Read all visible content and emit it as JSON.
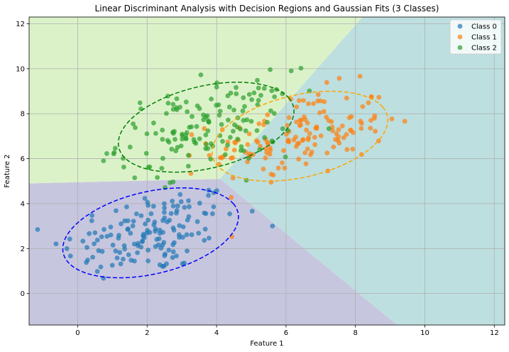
{
  "chart_data": {
    "type": "scatter",
    "title": "Linear Discriminant Analysis with Decision Regions and Gaussian Fits (3 Classes)",
    "xlabel": "Feature 1",
    "ylabel": "Feature 2",
    "xlim": [
      -1.4,
      12.3
    ],
    "ylim": [
      -1.4,
      12.3
    ],
    "xticks": [
      0,
      2,
      4,
      6,
      8,
      10,
      12
    ],
    "yticks": [
      0,
      2,
      4,
      6,
      8,
      10,
      12
    ],
    "grid": true,
    "legend": "top-right",
    "regions": {
      "boundary_0_2": [
        [
          -1.4,
          4.9
        ],
        [
          4.1,
          5.1
        ]
      ],
      "boundary_0_1": [
        [
          4.1,
          5.1
        ],
        [
          9.2,
          -1.4
        ]
      ],
      "boundary_1_2": [
        [
          4.1,
          5.1
        ],
        [
          8.2,
          12.3
        ]
      ],
      "colors": {
        "0": "#c7c6df",
        "1": "#bddfdf",
        "2": "#dbf2c9"
      }
    },
    "series": [
      {
        "name": "Class 0",
        "color": "#1f77b4",
        "ellipse_color": "#0000ff",
        "mean": [
          2.1,
          2.7
        ],
        "cov": [
          [
            1.6,
            0.45
          ],
          [
            0.45,
            1.0
          ]
        ],
        "n": 150
      },
      {
        "name": "Class 1",
        "color": "#ff7f0e",
        "ellipse_color": "#ffa500",
        "mean": [
          6.4,
          7.0
        ],
        "cov": [
          [
            1.6,
            0.45
          ],
          [
            0.45,
            1.0
          ]
        ],
        "n": 150
      },
      {
        "name": "Class 2",
        "color": "#2ca02c",
        "ellipse_color": "#008000",
        "mean": [
          3.7,
          7.4
        ],
        "cov": [
          [
            1.6,
            0.45
          ],
          [
            0.45,
            1.0
          ]
        ],
        "n": 150
      }
    ]
  }
}
